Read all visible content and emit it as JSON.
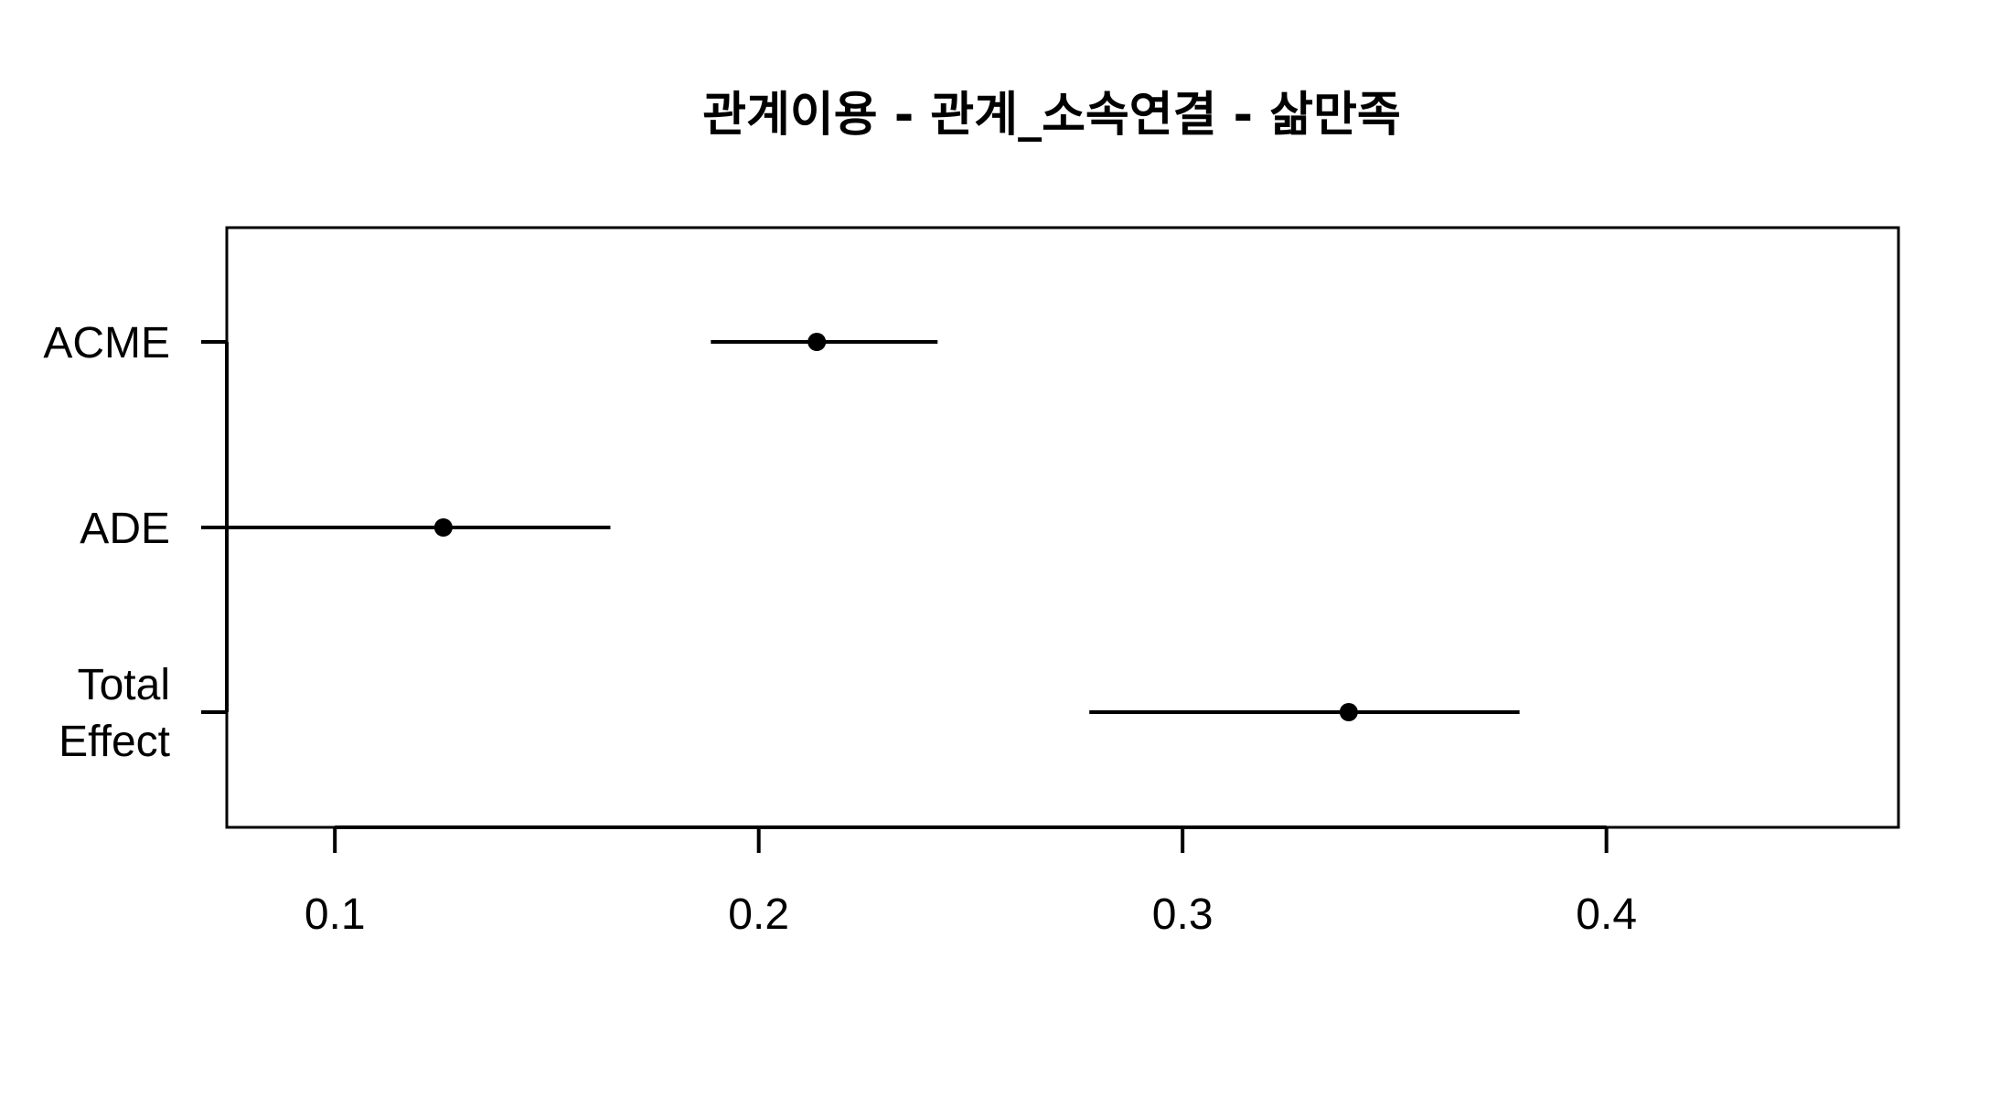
{
  "chart_data": {
    "type": "interval",
    "title": "관계이용 - 관계_소속연결 - 삶만족",
    "xlabel": "",
    "ylabel": "",
    "xlim": [
      0.0745,
      0.4689
    ],
    "xticks": [
      0.1,
      0.2,
      0.3,
      0.4
    ],
    "xtick_labels": [
      "0.1",
      "0.2",
      "0.3",
      "0.4"
    ],
    "grid": false,
    "legend": "none",
    "series": [
      {
        "name": "ACME",
        "label_lines": [
          "ACME"
        ],
        "estimate": 0.2137,
        "lower": 0.1887,
        "upper": 0.2422
      },
      {
        "name": "ADE",
        "label_lines": [
          "ADE"
        ],
        "estimate": 0.1256,
        "lower": 0.0745,
        "upper": 0.165
      },
      {
        "name": "Total Effect",
        "label_lines": [
          "Total",
          "Effect"
        ],
        "estimate": 0.3392,
        "lower": 0.278,
        "upper": 0.3795
      }
    ]
  }
}
